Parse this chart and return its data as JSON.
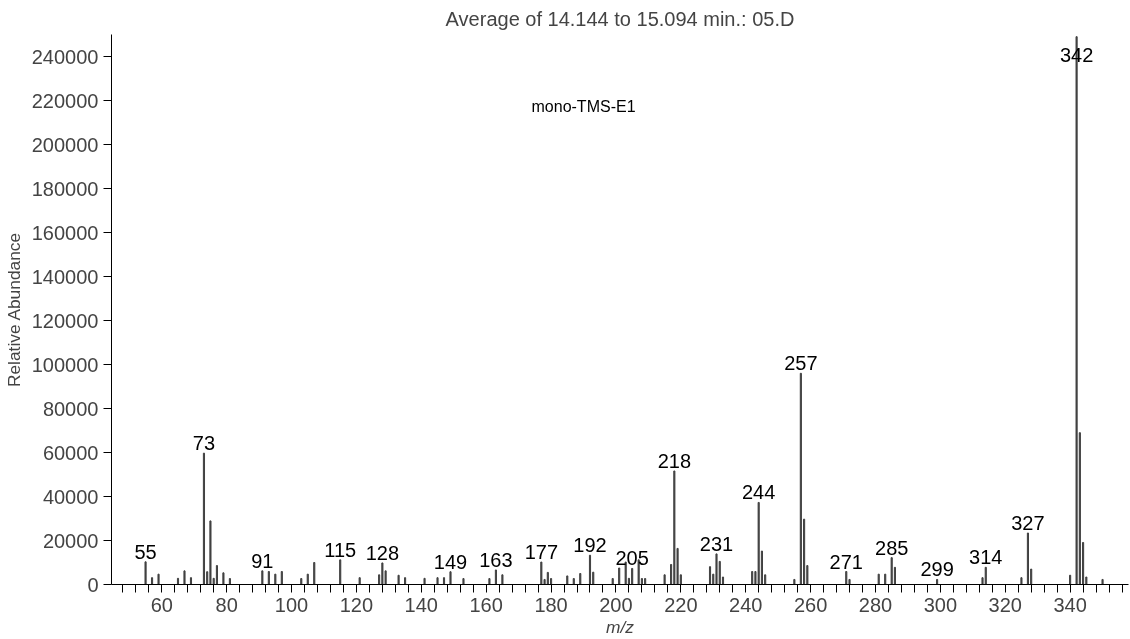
{
  "chart_data": {
    "type": "bar",
    "title": "Average of 14.144 to 15.094 min.: 05.D",
    "xlabel": "m/z",
    "ylabel": "Relative Abundance",
    "x": [
      55,
      57,
      59,
      65,
      67,
      69,
      73,
      74,
      75,
      76,
      77,
      79,
      81,
      91,
      93,
      95,
      97,
      103,
      105,
      107,
      115,
      121,
      127,
      128,
      129,
      133,
      135,
      141,
      145,
      147,
      149,
      153,
      161,
      163,
      165,
      177,
      178,
      179,
      180,
      185,
      187,
      189,
      192,
      193,
      199,
      201,
      203,
      204,
      205,
      207,
      208,
      209,
      215,
      217,
      218,
      219,
      220,
      229,
      230,
      231,
      232,
      233,
      242,
      243,
      244,
      245,
      246,
      255,
      257,
      258,
      259,
      271,
      272,
      281,
      283,
      285,
      286,
      299,
      313,
      314,
      325,
      327,
      328,
      340,
      342,
      343,
      344,
      345,
      350
    ],
    "values": [
      10300,
      3100,
      4700,
      2800,
      6200,
      3100,
      59700,
      5800,
      28900,
      2800,
      8600,
      5300,
      2700,
      6200,
      5900,
      4700,
      5900,
      2700,
      4700,
      10000,
      11200,
      3100,
      4400,
      9800,
      6200,
      4200,
      3100,
      2800,
      3100,
      3100,
      5800,
      2700,
      2700,
      6600,
      4400,
      10200,
      2300,
      5500,
      2700,
      3900,
      2700,
      5000,
      13300,
      5600,
      2700,
      7500,
      10200,
      2800,
      7300,
      11200,
      2700,
      2700,
      4400,
      9100,
      51600,
      16400,
      4400,
      8100,
      4700,
      13900,
      10500,
      3400,
      5900,
      5900,
      37300,
      15200,
      4400,
      2300,
      96000,
      29700,
      8600,
      5900,
      2300,
      4700,
      4700,
      12200,
      7800,
      2300,
      3100,
      7800,
      3100,
      23400,
      7000,
      4200,
      249000,
      69000,
      19100,
      3400,
      2300
    ],
    "color": "#404040",
    "xlim": [
      44.5,
      358
    ],
    "ylim": [
      0,
      250000
    ],
    "xticks": [
      {
        "value": 48,
        "label": null
      },
      {
        "value": 52,
        "label": null
      },
      {
        "value": 56,
        "label": null
      },
      60,
      {
        "value": 64,
        "label": null
      },
      {
        "value": 68,
        "label": null
      },
      {
        "value": 72,
        "label": null
      },
      {
        "value": 76,
        "label": null
      },
      80,
      {
        "value": 84,
        "label": null
      },
      {
        "value": 88,
        "label": null
      },
      {
        "value": 92,
        "label": null
      },
      {
        "value": 96,
        "label": null
      },
      100,
      {
        "value": 104,
        "label": null
      },
      {
        "value": 108,
        "label": null
      },
      {
        "value": 112,
        "label": null
      },
      {
        "value": 116,
        "label": null
      },
      120,
      {
        "value": 124,
        "label": null
      },
      {
        "value": 128,
        "label": null
      },
      {
        "value": 132,
        "label": null
      },
      {
        "value": 136,
        "label": null
      },
      140,
      {
        "value": 144,
        "label": null
      },
      {
        "value": 148,
        "label": null
      },
      {
        "value": 152,
        "label": null
      },
      {
        "value": 156,
        "label": null
      },
      160,
      {
        "value": 164,
        "label": null
      },
      {
        "value": 168,
        "label": null
      },
      {
        "value": 172,
        "label": null
      },
      {
        "value": 176,
        "label": null
      },
      180,
      {
        "value": 184,
        "label": null
      },
      {
        "value": 188,
        "label": null
      },
      {
        "value": 192,
        "label": null
      },
      {
        "value": 196,
        "label": null
      },
      200,
      {
        "value": 204,
        "label": null
      },
      {
        "value": 208,
        "label": null
      },
      {
        "value": 212,
        "label": null
      },
      {
        "value": 216,
        "label": null
      },
      220,
      {
        "value": 224,
        "label": null
      },
      {
        "value": 228,
        "label": null
      },
      {
        "value": 232,
        "label": null
      },
      {
        "value": 236,
        "label": null
      },
      240,
      {
        "value": 244,
        "label": null
      },
      {
        "value": 248,
        "label": null
      },
      {
        "value": 252,
        "label": null
      },
      {
        "value": 256,
        "label": null
      },
      260,
      {
        "value": 264,
        "label": null
      },
      {
        "value": 268,
        "label": null
      },
      {
        "value": 272,
        "label": null
      },
      {
        "value": 276,
        "label": null
      },
      280,
      {
        "value": 284,
        "label": null
      },
      {
        "value": 288,
        "label": null
      },
      {
        "value": 292,
        "label": null
      },
      {
        "value": 296,
        "label": null
      },
      300,
      {
        "value": 304,
        "label": null
      },
      {
        "value": 308,
        "label": null
      },
      {
        "value": 312,
        "label": null
      },
      {
        "value": 316,
        "label": null
      },
      320,
      {
        "value": 324,
        "label": null
      },
      {
        "value": 328,
        "label": null
      },
      {
        "value": 332,
        "label": null
      },
      {
        "value": 336,
        "label": null
      },
      340,
      {
        "value": 344,
        "label": null
      },
      {
        "value": 348,
        "label": null
      },
      {
        "value": 352,
        "label": null
      },
      {
        "value": 356,
        "label": null
      }
    ],
    "yticks": [
      0,
      20000,
      40000,
      60000,
      80000,
      100000,
      120000,
      140000,
      160000,
      180000,
      200000,
      220000,
      240000
    ],
    "grid": false,
    "annotations": [
      "mono-TMS-E1",
      {
        "text": "55",
        "x": 55,
        "y": 10300
      },
      {
        "text": "73",
        "x": 73,
        "y": 59700
      },
      {
        "text": "91",
        "x": 91,
        "y": 6200
      },
      {
        "text": "115",
        "x": 115,
        "y": 11200
      },
      {
        "text": "128",
        "x": 128,
        "y": 9800
      },
      {
        "text": "149",
        "x": 149,
        "y": 5800
      },
      {
        "text": "163",
        "x": 163,
        "y": 6600
      },
      {
        "text": "177",
        "x": 177,
        "y": 10200
      },
      {
        "text": "192",
        "x": 192,
        "y": 13300
      },
      {
        "text": "205",
        "x": 205,
        "y": 7300
      },
      {
        "text": "218",
        "x": 218,
        "y": 51600
      },
      {
        "text": "231",
        "x": 231,
        "y": 13900
      },
      {
        "text": "244",
        "x": 244,
        "y": 37300
      },
      {
        "text": "257",
        "x": 257,
        "y": 96000
      },
      {
        "text": "271",
        "x": 271,
        "y": 5900
      },
      {
        "text": "285",
        "x": 285,
        "y": 12200
      },
      {
        "text": "299",
        "x": 299,
        "y": 2300
      },
      {
        "text": "314",
        "x": 314,
        "y": 7800
      },
      {
        "text": "327",
        "x": 327,
        "y": 23400
      },
      {
        "text": "342",
        "x": 342,
        "y": 236000
      }
    ]
  }
}
